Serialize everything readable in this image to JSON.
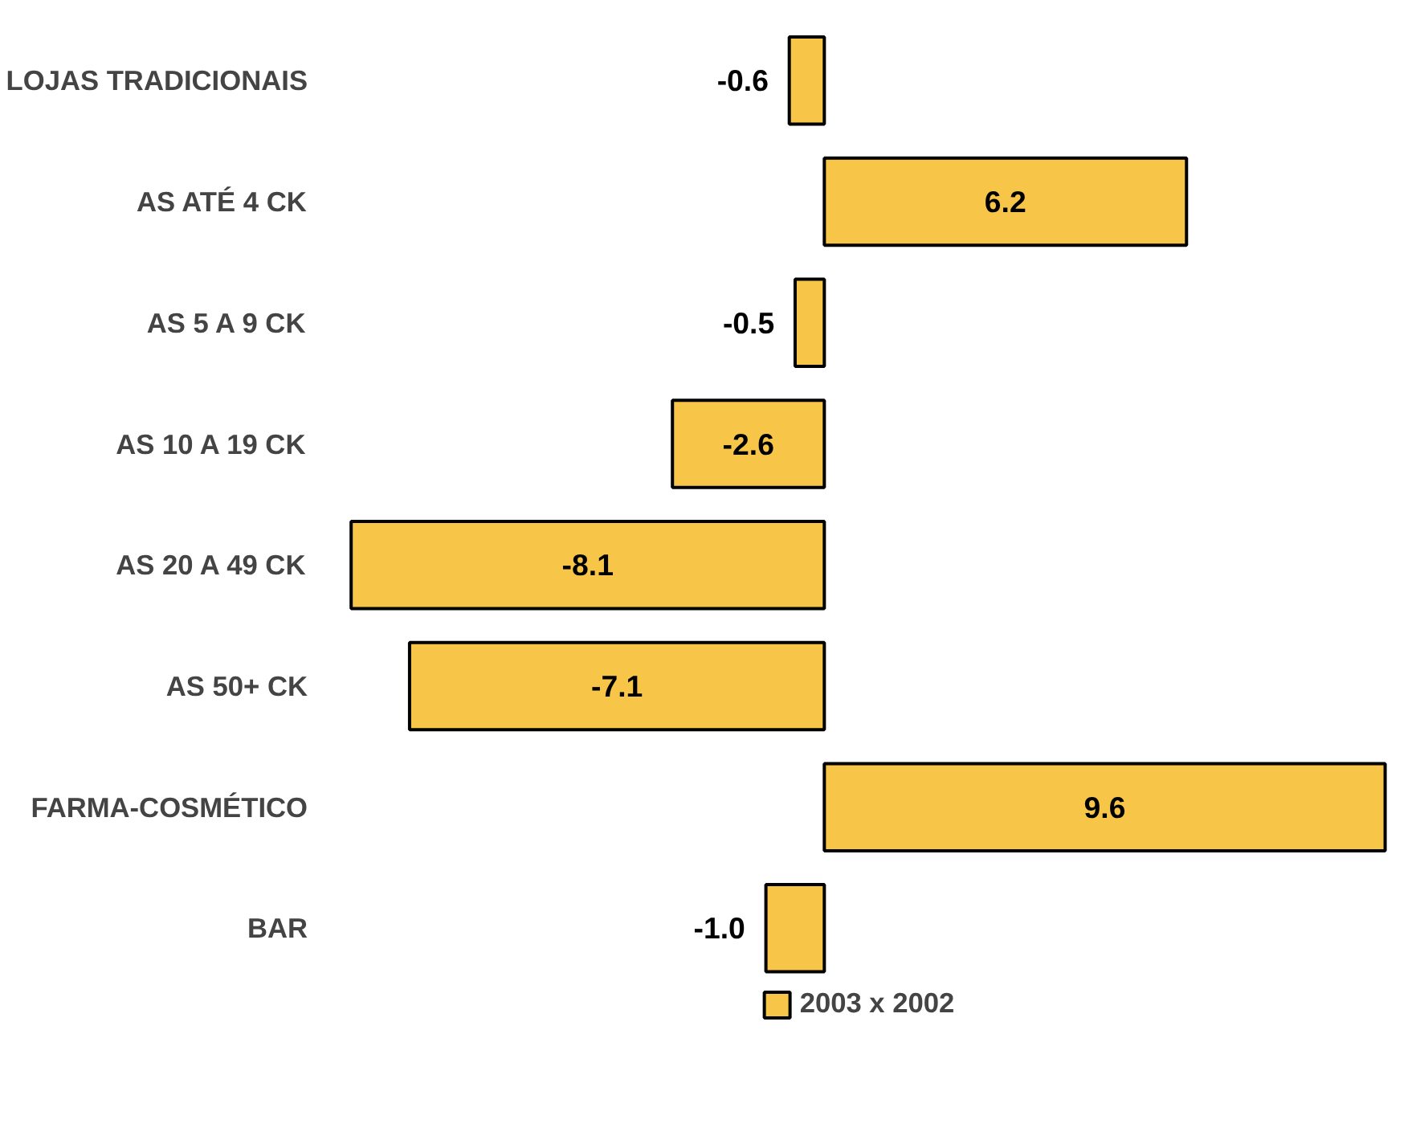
{
  "chart_data": {
    "type": "bar",
    "orientation": "horizontal",
    "categories": [
      "LOJAS TRADICIONAIS",
      "AS ATÉ 4 CK",
      "AS 5 A 9 CK",
      "AS 10 A 19 CK",
      "AS 20 A 49 CK",
      "AS 50+ CK",
      "FARMA-COSMÉTICO",
      "BAR"
    ],
    "series": [
      {
        "name": "2003 x 2002",
        "color": "#f7c548",
        "values": [
          -0.6,
          6.2,
          -0.5,
          -2.6,
          -8.1,
          -7.1,
          9.6,
          -1.0
        ],
        "value_labels": [
          "-0.6",
          "6.2",
          "-0.5",
          "-2.6",
          "-8.1",
          "-7.1",
          "9.6",
          "-1.0"
        ]
      }
    ],
    "legend": "bottom",
    "grid": false
  }
}
